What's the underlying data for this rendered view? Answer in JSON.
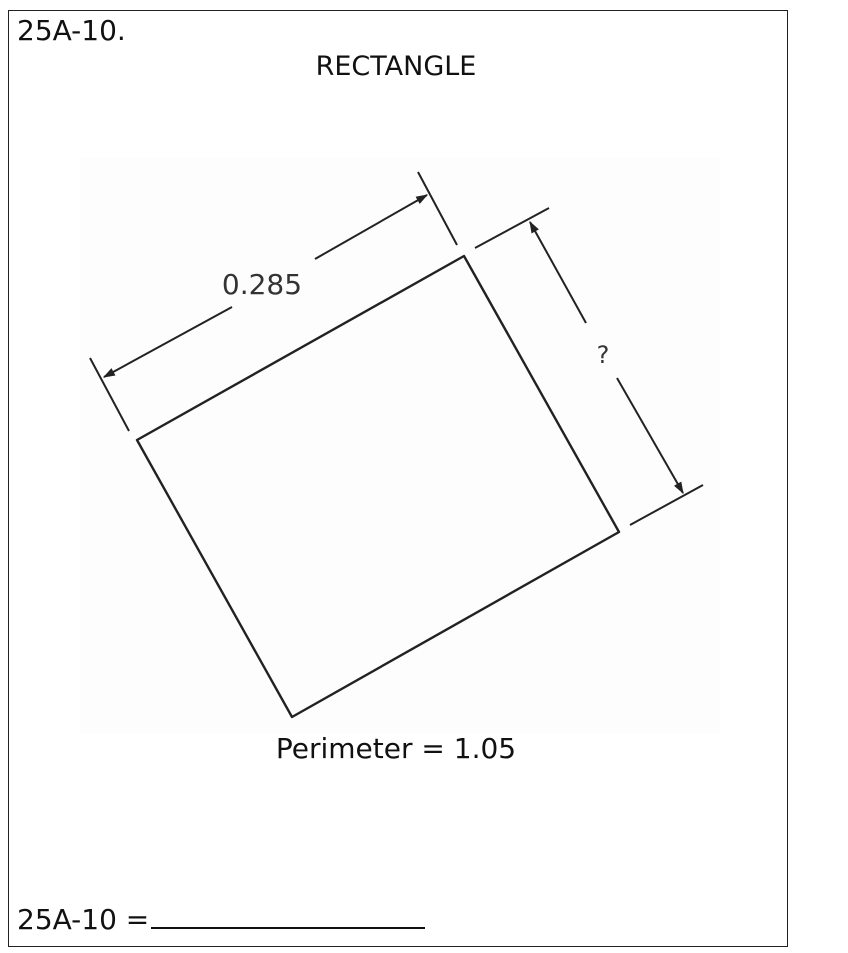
{
  "problem": {
    "number": "25A-10.",
    "shape_name": "RECTANGLE"
  },
  "diagram": {
    "length_label": "0.285",
    "width_label": "?"
  },
  "perimeter_text": "Perimeter = 1.05",
  "answer": {
    "prefix": "25A-10 ="
  },
  "colors": {
    "line": "#222222",
    "text": "#111111",
    "diagram_background": "#fdfdfd"
  }
}
